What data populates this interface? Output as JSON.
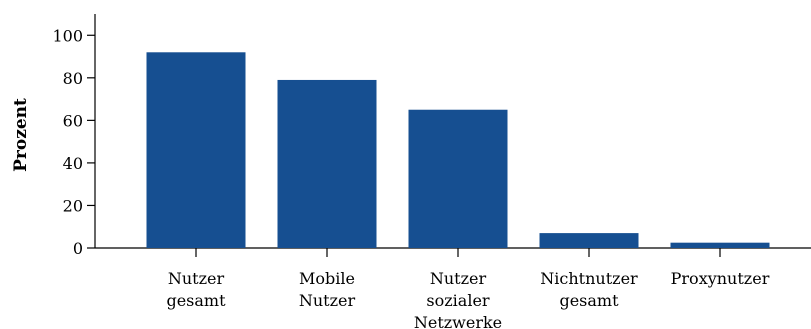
{
  "chart_data": {
    "type": "bar",
    "title": "",
    "xlabel": "",
    "ylabel": "Prozent",
    "categories": [
      [
        "Nutzer",
        "gesamt"
      ],
      [
        "Mobile",
        "Nutzer"
      ],
      [
        "Nutzer",
        "sozialer",
        "Netzwerke"
      ],
      [
        "Nichtnutzer",
        "gesamt"
      ],
      [
        "Proxynutzer"
      ]
    ],
    "values": [
      92,
      79,
      65,
      7,
      2.5
    ],
    "ylim": [
      0,
      110
    ],
    "yticks": [
      "0",
      "20",
      "40",
      "60",
      "80",
      "100"
    ],
    "grid": false,
    "bar_color": "#164f91"
  }
}
